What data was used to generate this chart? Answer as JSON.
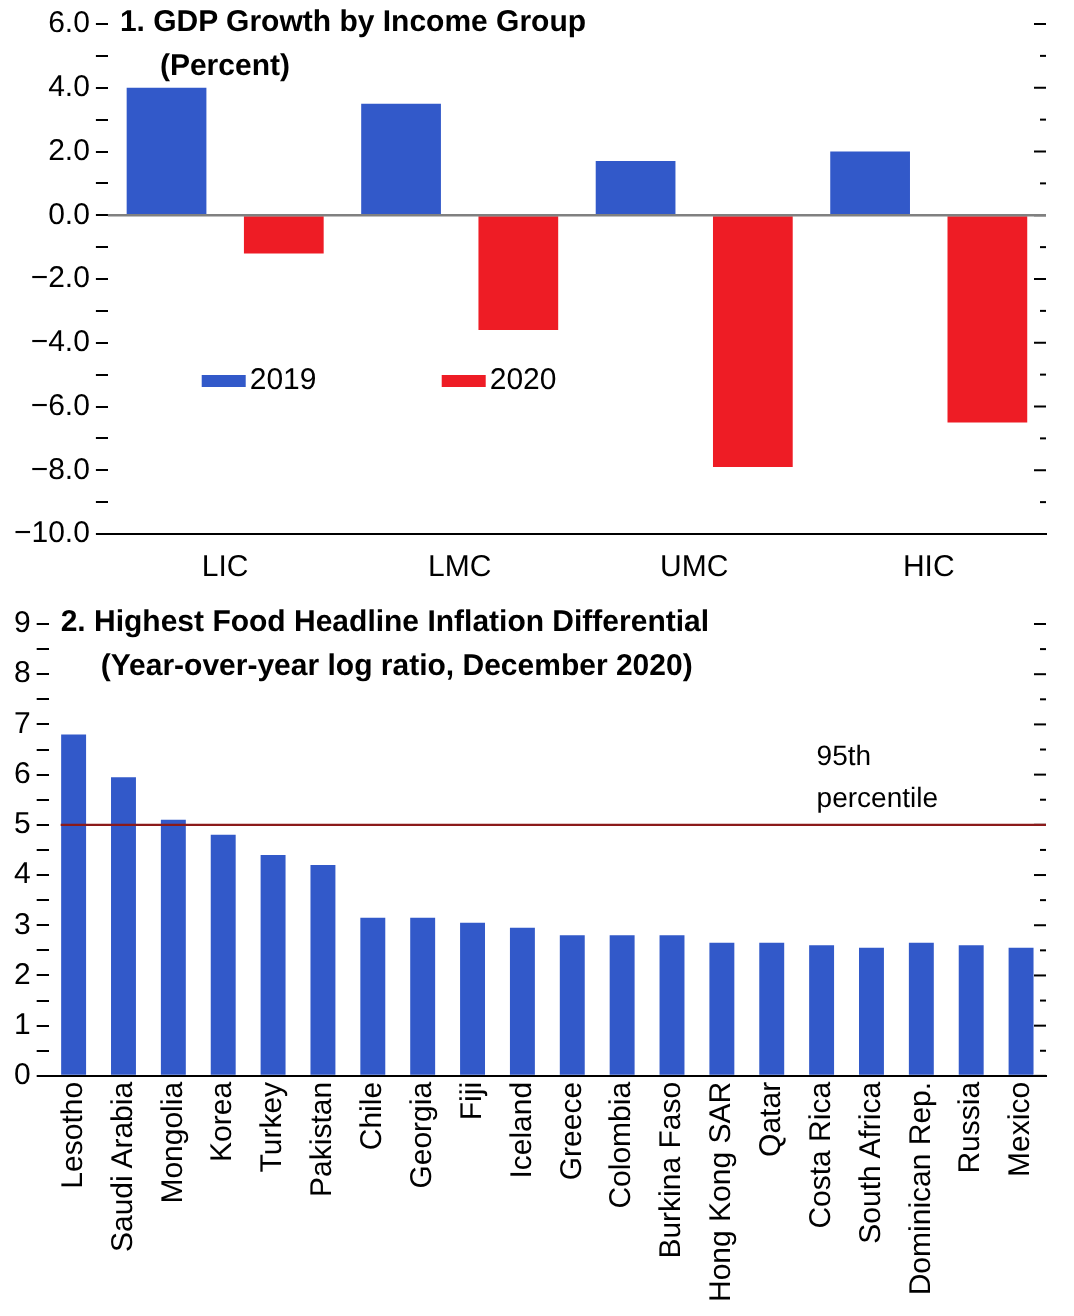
{
  "chart_data": [
    {
      "type": "bar",
      "title": "1. GDP Growth by Income Group",
      "subtitle": "(Percent)",
      "categories": [
        "LIC",
        "LMC",
        "UMC",
        "HIC"
      ],
      "series": [
        {
          "name": "2019",
          "color": "#3259c9",
          "values": [
            4.0,
            3.5,
            1.7,
            2.0
          ]
        },
        {
          "name": "2020",
          "color": "#ee1c25",
          "values": [
            -1.2,
            -3.6,
            -7.9,
            -6.5
          ]
        }
      ],
      "ylim": [
        -10,
        6
      ],
      "yticks": [
        {
          "value": -10,
          "label": "−10.0"
        },
        {
          "value": -9,
          "label": null
        },
        {
          "value": -8,
          "label": "−8.0"
        },
        {
          "value": -7,
          "label": null
        },
        {
          "value": -6,
          "label": "−6.0"
        },
        {
          "value": -5,
          "label": null
        },
        {
          "value": -4,
          "label": "−4.0"
        },
        {
          "value": -3,
          "label": null
        },
        {
          "value": -2,
          "label": "−2.0"
        },
        {
          "value": -1,
          "label": null
        },
        {
          "value": 0,
          "label": "0.0"
        },
        {
          "value": 1,
          "label": null
        },
        {
          "value": 2,
          "label": "2.0"
        },
        {
          "value": 3,
          "label": null
        },
        {
          "value": 4,
          "label": "4.0"
        },
        {
          "value": 5,
          "label": null
        },
        {
          "value": 6,
          "label": "6.0"
        }
      ],
      "ref_lines": [
        {
          "axis": "y",
          "value": 0,
          "color": "#808080"
        }
      ],
      "legend": "center",
      "grid": false
    },
    {
      "type": "bar",
      "title": "2. Highest Food Headline Inflation Differential",
      "subtitle": "(Year-over-year log ratio, December 2020)",
      "categories": [
        "Lesotho",
        "Saudi Arabia",
        "Mongolia",
        "Korea",
        "Turkey",
        "Pakistan",
        "Chile",
        "Georgia",
        "Fiji",
        "Iceland",
        "Greece",
        "Colombia",
        "Burkina Faso",
        "Hong Kong SAR",
        "Qatar",
        "Costa Rica",
        "South Africa",
        "Dominican Rep.",
        "Russia",
        "Mexico"
      ],
      "color": "#3259c9",
      "values": [
        6.8,
        5.95,
        5.1,
        4.8,
        4.4,
        4.2,
        3.15,
        3.15,
        3.05,
        2.95,
        2.8,
        2.8,
        2.8,
        2.65,
        2.65,
        2.6,
        2.55,
        2.65,
        2.6,
        2.55
      ],
      "ylim": [
        0,
        9
      ],
      "yticks": [
        0,
        {
          "value": 0.5,
          "label": null
        },
        1,
        {
          "value": 1.5,
          "label": null
        },
        2,
        {
          "value": 2.5,
          "label": null
        },
        3,
        {
          "value": 3.5,
          "label": null
        },
        4,
        {
          "value": 4.5,
          "label": null
        },
        5,
        {
          "value": 5.5,
          "label": null
        },
        6,
        {
          "value": 6.5,
          "label": null
        },
        7,
        {
          "value": 7.5,
          "label": null
        },
        8,
        {
          "value": 8.5,
          "label": null
        },
        9
      ],
      "ref_lines": [
        {
          "axis": "y",
          "value": 5,
          "label": "95th percentile",
          "color": "#8b1a1a"
        }
      ],
      "legend": false,
      "grid": false
    }
  ]
}
